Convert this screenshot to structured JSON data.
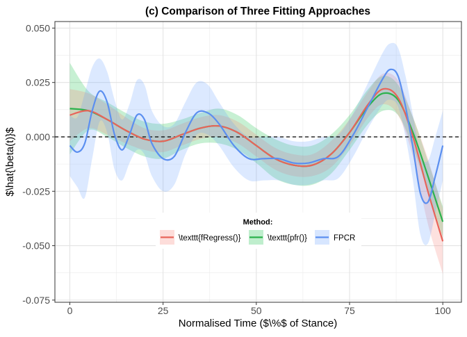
{
  "chart_data": {
    "type": "line",
    "title": "(c) Comparison of Three Fitting Approaches",
    "xlabel": "Normalised Time ($\\%$ of Stance)",
    "ylabel": "$\\hat{\\beta(t)}$",
    "xlim": [
      -4,
      105
    ],
    "ylim": [
      -0.076,
      0.053
    ],
    "x_ticks": [
      0,
      25,
      50,
      75,
      100
    ],
    "x_tick_labels": [
      "0",
      "25",
      "50",
      "75",
      "100"
    ],
    "y_ticks": [
      0.05,
      0.025,
      0.0,
      -0.025,
      -0.05,
      -0.075
    ],
    "y_tick_labels": [
      "0.050",
      "0.025",
      "0.000",
      "-0.025",
      "-0.050",
      "-0.075"
    ],
    "grid": true,
    "reference_line": {
      "y": 0,
      "style": "dashed"
    },
    "legend": {
      "title": "Method:",
      "position": "bottom-center-inside",
      "entries": [
        "\\texttt{fRegress()}",
        "\\texttt{pfr()}",
        "FPCR"
      ]
    },
    "series": [
      {
        "name": "\\texttt{fRegress()}",
        "color": "#E8645A",
        "band_color": "#F8766D",
        "x": [
          0,
          5,
          10,
          15,
          20,
          25,
          30,
          35,
          40,
          45,
          50,
          55,
          60,
          65,
          70,
          75,
          80,
          84,
          88,
          92,
          96,
          100
        ],
        "y": [
          0.01,
          0.012,
          0.008,
          0.003,
          -0.001,
          -0.002,
          0.001,
          0.004,
          0.005,
          0.002,
          -0.004,
          -0.01,
          -0.013,
          -0.013,
          -0.008,
          0.002,
          0.015,
          0.022,
          0.018,
          0.0,
          -0.025,
          -0.048
        ],
        "lower": [
          -0.002,
          0.004,
          0.001,
          -0.003,
          -0.006,
          -0.007,
          -0.004,
          -0.001,
          0.0,
          -0.003,
          -0.009,
          -0.015,
          -0.018,
          -0.018,
          -0.014,
          -0.004,
          0.009,
          0.015,
          0.01,
          -0.009,
          -0.04,
          -0.063
        ],
        "upper": [
          0.022,
          0.02,
          0.015,
          0.009,
          0.004,
          0.003,
          0.006,
          0.009,
          0.01,
          0.007,
          0.001,
          -0.005,
          -0.008,
          -0.008,
          -0.002,
          0.008,
          0.021,
          0.029,
          0.026,
          0.009,
          -0.01,
          -0.033
        ]
      },
      {
        "name": "\\texttt{pfr()}",
        "color": "#2BB24C",
        "band_color": "#00BA38",
        "x": [
          0,
          5,
          10,
          15,
          20,
          25,
          30,
          35,
          40,
          45,
          50,
          55,
          60,
          65,
          70,
          75,
          80,
          84,
          88,
          92,
          96,
          100
        ],
        "y": [
          0.013,
          0.012,
          0.008,
          0.003,
          -0.001,
          -0.002,
          0.001,
          0.004,
          0.005,
          0.002,
          -0.004,
          -0.01,
          -0.013,
          -0.013,
          -0.008,
          0.002,
          0.014,
          0.02,
          0.017,
          0.002,
          -0.018,
          -0.039
        ],
        "lower": [
          -0.008,
          0.003,
          0.0,
          -0.005,
          -0.009,
          -0.01,
          -0.006,
          -0.003,
          -0.003,
          -0.006,
          -0.012,
          -0.019,
          -0.022,
          -0.022,
          -0.017,
          -0.006,
          0.006,
          0.012,
          0.01,
          -0.005,
          -0.025,
          -0.046
        ],
        "upper": [
          0.034,
          0.021,
          0.016,
          0.011,
          0.007,
          0.006,
          0.008,
          0.011,
          0.013,
          0.01,
          0.004,
          -0.001,
          -0.004,
          -0.004,
          0.001,
          0.01,
          0.022,
          0.028,
          0.024,
          0.009,
          -0.011,
          -0.032
        ]
      },
      {
        "name": "FPCR",
        "color": "#5B8FF0",
        "band_color": "#619CFF",
        "x": [
          0,
          2,
          4,
          6,
          8,
          10,
          12,
          14,
          16,
          18,
          20,
          22,
          25,
          28,
          31,
          34,
          37,
          40,
          44,
          48,
          52,
          56,
          60,
          64,
          68,
          72,
          76,
          80,
          84,
          86,
          88,
          90,
          92,
          94,
          96,
          98,
          100
        ],
        "y": [
          -0.004,
          -0.007,
          -0.003,
          0.012,
          0.021,
          0.016,
          0.001,
          -0.006,
          0.001,
          0.01,
          0.008,
          -0.003,
          -0.01,
          -0.009,
          0.002,
          0.011,
          0.011,
          0.006,
          -0.004,
          -0.01,
          -0.01,
          -0.01,
          -0.012,
          -0.012,
          -0.01,
          -0.009,
          0.001,
          0.014,
          0.027,
          0.031,
          0.028,
          0.014,
          -0.005,
          -0.026,
          -0.03,
          -0.018,
          -0.004
        ],
        "lower": [
          -0.018,
          -0.023,
          -0.028,
          -0.01,
          0.007,
          0.002,
          -0.015,
          -0.02,
          -0.012,
          -0.006,
          -0.008,
          -0.018,
          -0.025,
          -0.022,
          -0.008,
          0.001,
          0.001,
          -0.004,
          -0.014,
          -0.02,
          -0.02,
          -0.02,
          -0.022,
          -0.022,
          -0.02,
          -0.019,
          -0.009,
          0.004,
          0.015,
          0.017,
          0.014,
          0.0,
          -0.02,
          -0.045,
          -0.049,
          -0.035,
          -0.02
        ],
        "upper": [
          0.01,
          0.009,
          0.02,
          0.032,
          0.036,
          0.03,
          0.017,
          0.008,
          0.015,
          0.026,
          0.024,
          0.012,
          0.005,
          0.006,
          0.016,
          0.025,
          0.024,
          0.016,
          0.006,
          0.0,
          0.0,
          0.0,
          -0.002,
          -0.002,
          0.0,
          0.001,
          0.011,
          0.025,
          0.039,
          0.043,
          0.041,
          0.028,
          0.01,
          -0.008,
          -0.011,
          0.0,
          0.012
        ]
      }
    ]
  }
}
